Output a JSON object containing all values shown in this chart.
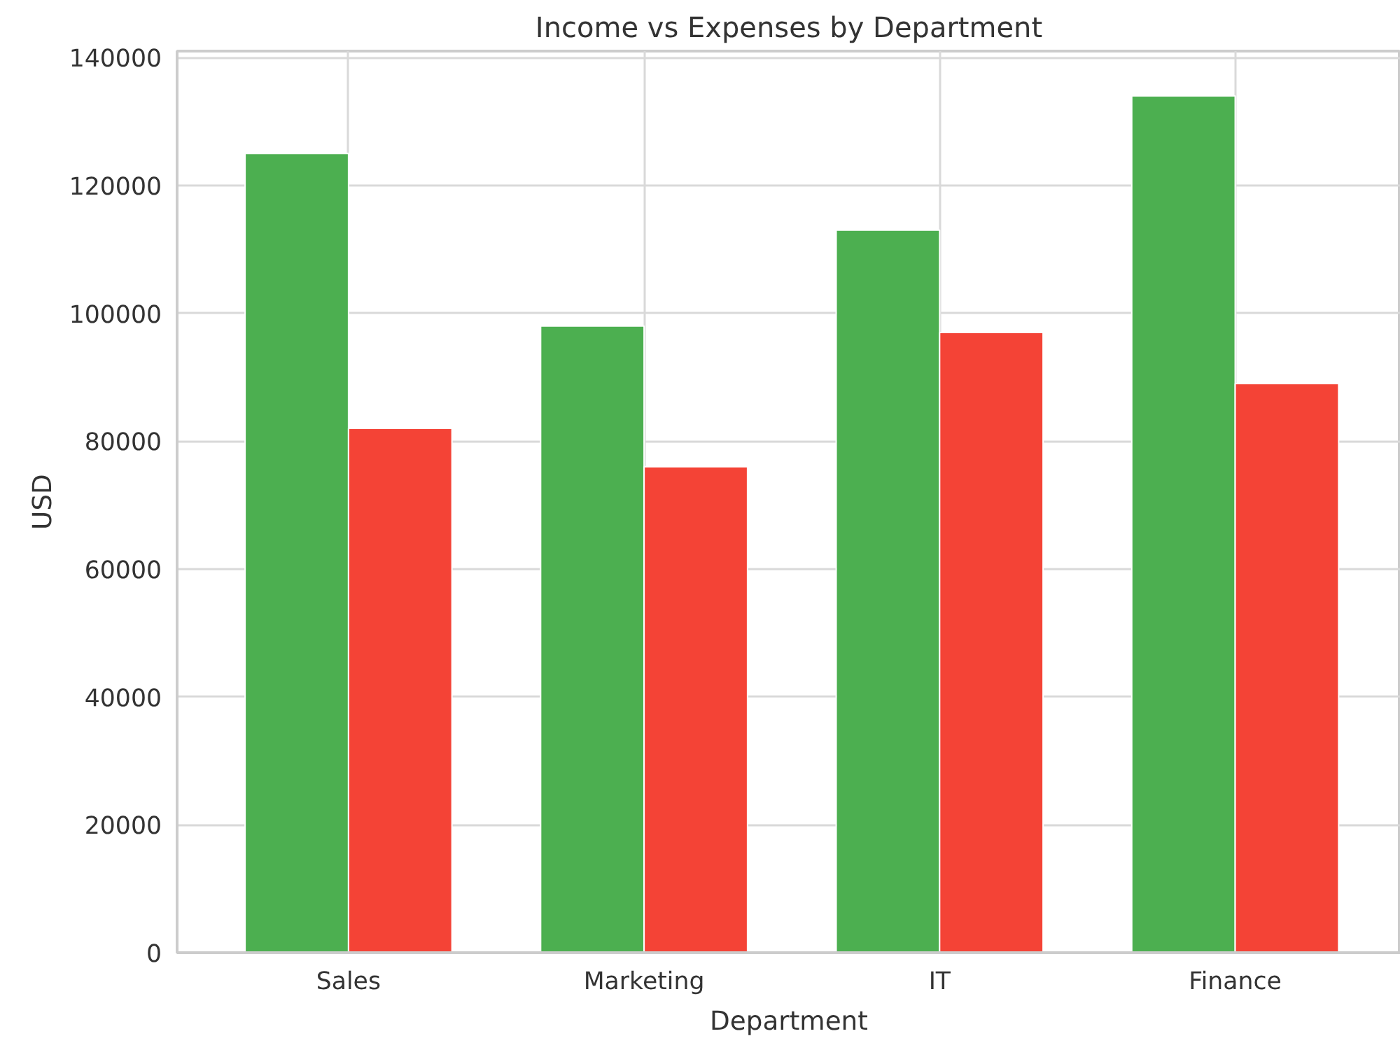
{
  "chart_data": {
    "type": "bar",
    "title": "Income vs Expenses by Department",
    "xlabel": "Department",
    "ylabel": "USD",
    "categories": [
      "Sales",
      "Marketing",
      "IT",
      "Finance"
    ],
    "series": [
      {
        "color": "#4caf50",
        "values": [
          125000,
          98000,
          113000,
          134000
        ]
      },
      {
        "color": "#f44336",
        "values": [
          82000,
          76000,
          97000,
          89000
        ]
      }
    ],
    "ylim": [
      0,
      141000
    ],
    "yticks": [
      0,
      20000,
      40000,
      60000,
      80000,
      100000,
      120000,
      140000
    ],
    "grid": true
  }
}
